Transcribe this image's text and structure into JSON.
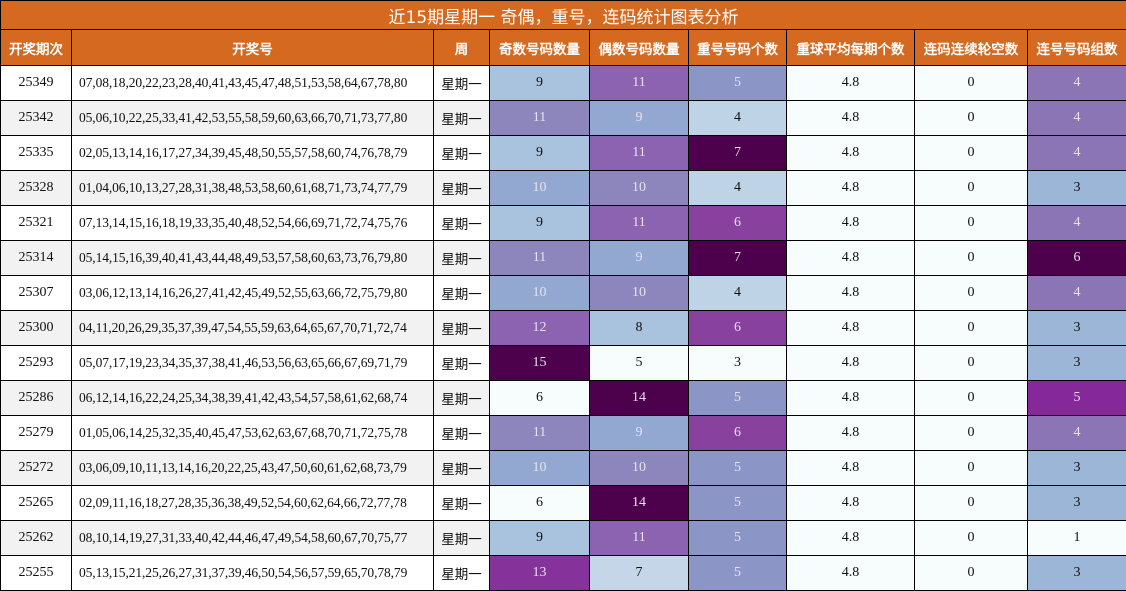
{
  "title": "近15期星期一 奇偶，重号，连码统计图表分析",
  "headers": [
    "开奖期次",
    "开奖号",
    "周",
    "奇数号码数量",
    "偶数号码数量",
    "重号号码个数",
    "重球平均每期个数",
    "连码连续轮空数",
    "连号号码组数"
  ],
  "palette": {
    "header_bg": "#d4691f",
    "v0": "#f7fcfd",
    "v1": "#bfd3e6",
    "v2": "#a9c3df",
    "v3": "#9ebcda",
    "v4": "#8c96c6",
    "v5": "#8c6bb1",
    "v6": "#88419d",
    "v7": "#810f7c",
    "v8": "#4d004b"
  },
  "rows": [
    {
      "issue": "25349",
      "numbers": "07,08,18,20,22,23,28,40,41,43,45,47,48,51,53,58,64,67,78,80",
      "week": "星期一",
      "odd": "9",
      "even": "11",
      "repeat": "5",
      "avg": "4.8",
      "gap": "0",
      "consec": "4"
    },
    {
      "issue": "25342",
      "numbers": "05,06,10,22,25,33,41,42,53,55,58,59,60,63,66,70,71,73,77,80",
      "week": "星期一",
      "odd": "11",
      "even": "9",
      "repeat": "4",
      "avg": "4.8",
      "gap": "0",
      "consec": "4"
    },
    {
      "issue": "25335",
      "numbers": "02,05,13,14,16,17,27,34,39,45,48,50,55,57,58,60,74,76,78,79",
      "week": "星期一",
      "odd": "9",
      "even": "11",
      "repeat": "7",
      "avg": "4.8",
      "gap": "0",
      "consec": "4"
    },
    {
      "issue": "25328",
      "numbers": "01,04,06,10,13,27,28,31,38,48,53,58,60,61,68,71,73,74,77,79",
      "week": "星期一",
      "odd": "10",
      "even": "10",
      "repeat": "4",
      "avg": "4.8",
      "gap": "0",
      "consec": "3"
    },
    {
      "issue": "25321",
      "numbers": "07,13,14,15,16,18,19,33,35,40,48,52,54,66,69,71,72,74,75,76",
      "week": "星期一",
      "odd": "9",
      "even": "11",
      "repeat": "6",
      "avg": "4.8",
      "gap": "0",
      "consec": "4"
    },
    {
      "issue": "25314",
      "numbers": "05,14,15,16,39,40,41,43,44,48,49,53,57,58,60,63,73,76,79,80",
      "week": "星期一",
      "odd": "11",
      "even": "9",
      "repeat": "7",
      "avg": "4.8",
      "gap": "0",
      "consec": "6"
    },
    {
      "issue": "25307",
      "numbers": "03,06,12,13,14,16,26,27,41,42,45,49,52,55,63,66,72,75,79,80",
      "week": "星期一",
      "odd": "10",
      "even": "10",
      "repeat": "4",
      "avg": "4.8",
      "gap": "0",
      "consec": "4"
    },
    {
      "issue": "25300",
      "numbers": "04,11,20,26,29,35,37,39,47,54,55,59,63,64,65,67,70,71,72,74",
      "week": "星期一",
      "odd": "12",
      "even": "8",
      "repeat": "6",
      "avg": "4.8",
      "gap": "0",
      "consec": "3"
    },
    {
      "issue": "25293",
      "numbers": "05,07,17,19,23,34,35,37,38,41,46,53,56,63,65,66,67,69,71,79",
      "week": "星期一",
      "odd": "15",
      "even": "5",
      "repeat": "3",
      "avg": "4.8",
      "gap": "0",
      "consec": "3"
    },
    {
      "issue": "25286",
      "numbers": "06,12,14,16,22,24,25,34,38,39,41,42,43,54,57,58,61,62,68,74",
      "week": "星期一",
      "odd": "6",
      "even": "14",
      "repeat": "5",
      "avg": "4.8",
      "gap": "0",
      "consec": "5"
    },
    {
      "issue": "25279",
      "numbers": "01,05,06,14,25,32,35,40,45,47,53,62,63,67,68,70,71,72,75,78",
      "week": "星期一",
      "odd": "11",
      "even": "9",
      "repeat": "6",
      "avg": "4.8",
      "gap": "0",
      "consec": "4"
    },
    {
      "issue": "25272",
      "numbers": "03,06,09,10,11,13,14,16,20,22,25,43,47,50,60,61,62,68,73,79",
      "week": "星期一",
      "odd": "10",
      "even": "10",
      "repeat": "5",
      "avg": "4.8",
      "gap": "0",
      "consec": "3"
    },
    {
      "issue": "25265",
      "numbers": "02,09,11,16,18,27,28,35,36,38,49,52,54,60,62,64,66,72,77,78",
      "week": "星期一",
      "odd": "6",
      "even": "14",
      "repeat": "5",
      "avg": "4.8",
      "gap": "0",
      "consec": "3"
    },
    {
      "issue": "25262",
      "numbers": "08,10,14,19,27,31,33,40,42,44,46,47,49,54,58,60,67,70,75,77",
      "week": "星期一",
      "odd": "9",
      "even": "11",
      "repeat": "5",
      "avg": "4.8",
      "gap": "0",
      "consec": "1"
    },
    {
      "issue": "25255",
      "numbers": "05,13,15,21,25,26,27,31,37,39,46,50,54,56,57,59,65,70,78,79",
      "week": "星期一",
      "odd": "13",
      "even": "7",
      "repeat": "5",
      "avg": "4.8",
      "gap": "0",
      "consec": "3"
    }
  ],
  "cell_colors": {
    "odd": [
      "#a9c3df",
      "#8c86bd",
      "#a9c3df",
      "#93a8d1",
      "#a9c3df",
      "#8c86bd",
      "#93a8d1",
      "#8c63b0",
      "#4d004b",
      "#f7fcfd",
      "#8c86bd",
      "#93a8d1",
      "#f7fcfd",
      "#a9c3df",
      "#85329a"
    ],
    "even": [
      "#8c63b0",
      "#93a8d1",
      "#8c63b0",
      "#8c86bd",
      "#8c63b0",
      "#93a8d1",
      "#8c86bd",
      "#a9c3df",
      "#f7fcfd",
      "#4d004b",
      "#93a8d1",
      "#8c86bd",
      "#4d004b",
      "#8c63b0",
      "#c5d6e8"
    ],
    "repeat": [
      "#8c96c6",
      "#bfd3e6",
      "#4d004b",
      "#bfd3e6",
      "#88419d",
      "#4d004b",
      "#bfd3e6",
      "#88419d",
      "#f7fcfd",
      "#8c96c6",
      "#88419d",
      "#8c96c6",
      "#8c96c6",
      "#8c96c6",
      "#8c96c6"
    ],
    "avg": [
      "#f7fcfd",
      "#f7fcfd",
      "#f7fcfd",
      "#f7fcfd",
      "#f7fcfd",
      "#f7fcfd",
      "#f7fcfd",
      "#f7fcfd",
      "#f7fcfd",
      "#f7fcfd",
      "#f7fcfd",
      "#f7fcfd",
      "#f7fcfd",
      "#f7fcfd",
      "#f7fcfd"
    ],
    "gap": [
      "#f7fcfd",
      "#f7fcfd",
      "#f7fcfd",
      "#f7fcfd",
      "#f7fcfd",
      "#f7fcfd",
      "#f7fcfd",
      "#f7fcfd",
      "#f7fcfd",
      "#f7fcfd",
      "#f7fcfd",
      "#f7fcfd",
      "#f7fcfd",
      "#f7fcfd",
      "#f7fcfd"
    ],
    "consec": [
      "#8c75b5",
      "#8c75b5",
      "#8c75b5",
      "#9cb6d8",
      "#8c75b5",
      "#4d004b",
      "#8c75b5",
      "#9cb6d8",
      "#9cb6d8",
      "#85289a",
      "#8c75b5",
      "#9cb6d8",
      "#9cb6d8",
      "#f7fcfd",
      "#9cb6d8"
    ]
  },
  "cell_light_text": {
    "odd": [
      false,
      true,
      false,
      true,
      false,
      true,
      true,
      true,
      true,
      false,
      true,
      true,
      false,
      false,
      true
    ],
    "even": [
      true,
      true,
      true,
      true,
      true,
      true,
      true,
      false,
      false,
      true,
      true,
      true,
      true,
      true,
      false
    ],
    "repeat": [
      true,
      false,
      true,
      false,
      true,
      true,
      false,
      true,
      false,
      true,
      true,
      true,
      true,
      true,
      true
    ],
    "consec": [
      true,
      true,
      true,
      false,
      true,
      true,
      true,
      false,
      false,
      true,
      true,
      false,
      false,
      false,
      false
    ]
  }
}
